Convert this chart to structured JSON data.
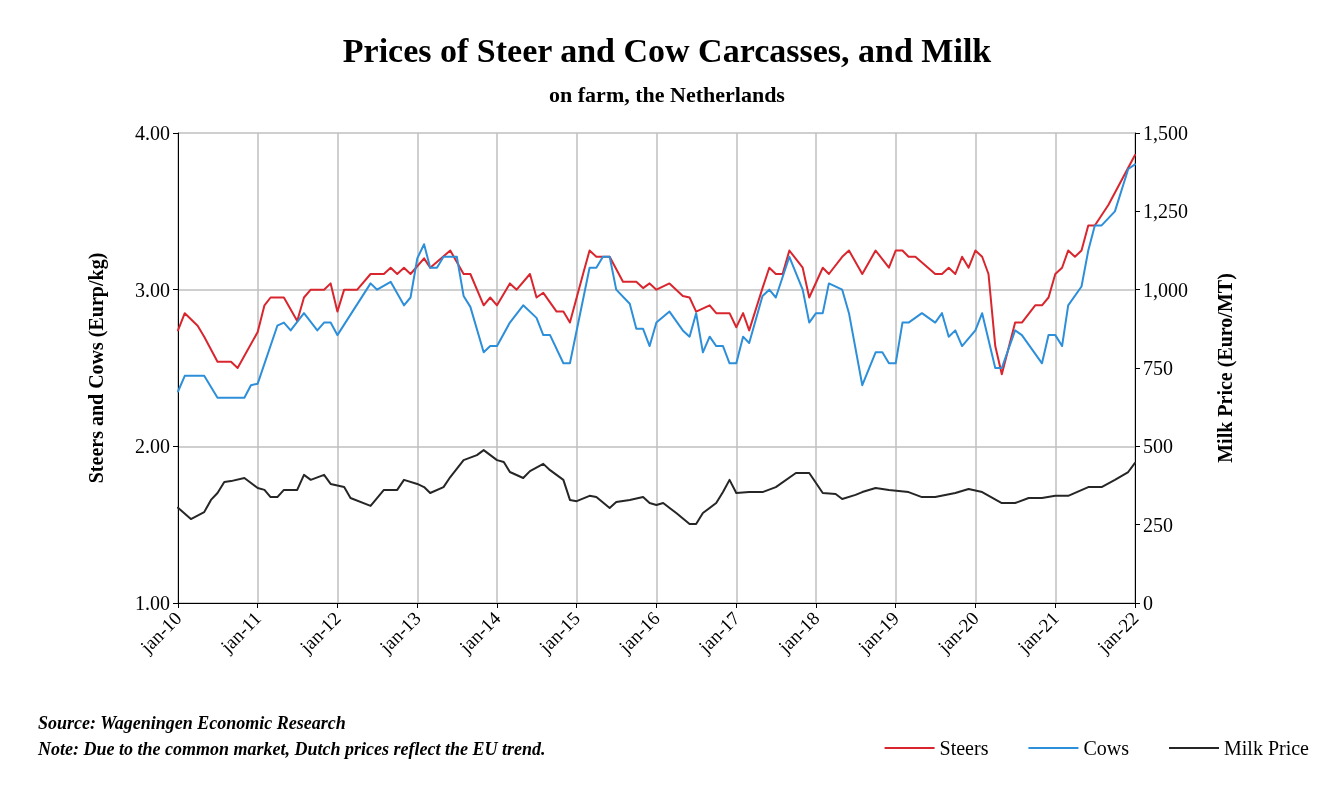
{
  "chart_data": {
    "type": "line",
    "title": "Prices of Steer and Cow Carcasses, and Milk",
    "subtitle": "on farm, the Netherlands",
    "ylabel": "Steers and Cows (Eurp/kg)",
    "y2label": "Milk Price (Euro/MT)",
    "annotations": [
      "Source: Wageningen Economic Research",
      "Note: Due to the common market, Dutch prices reflect the EU trend."
    ],
    "xlim": [
      "2010-01",
      "2022-01"
    ],
    "xticks": [
      {
        "value": "2010-01",
        "label": "jan-10"
      },
      {
        "value": "2011-01",
        "label": "jan-11"
      },
      {
        "value": "2012-01",
        "label": "jan-12"
      },
      {
        "value": "2013-01",
        "label": "jan-13"
      },
      {
        "value": "2014-01",
        "label": "jan-14"
      },
      {
        "value": "2015-01",
        "label": "jan-15"
      },
      {
        "value": "2016-01",
        "label": "jan-16"
      },
      {
        "value": "2017-01",
        "label": "jan-17"
      },
      {
        "value": "2018-01",
        "label": "jan-18"
      },
      {
        "value": "2019-01",
        "label": "jan-19"
      },
      {
        "value": "2020-01",
        "label": "jan-20"
      },
      {
        "value": "2021-01",
        "label": "jan-21"
      },
      {
        "value": "2022-01",
        "label": "jan-22"
      }
    ],
    "ylim": [
      1,
      4
    ],
    "yticks": [
      {
        "value": 1,
        "label": "1.00"
      },
      {
        "value": 2,
        "label": "2.00"
      },
      {
        "value": 3,
        "label": "3.00"
      },
      {
        "value": 4,
        "label": "4.00"
      }
    ],
    "y2lim": [
      0,
      1500
    ],
    "y2ticks": [
      0,
      250,
      500,
      750,
      {
        "value": 1000,
        "label": "1,000"
      },
      {
        "value": 1250,
        "label": "1,250"
      },
      {
        "value": 1500,
        "label": "1,500"
      }
    ],
    "grid": true,
    "legend": "bottom right",
    "marker": "none",
    "line_style": "solid",
    "series": [
      {
        "name": "Steers",
        "color": "#d9262e",
        "x": [
          "2010-01",
          "2010-02",
          "2010-04",
          "2010-05",
          "2010-07",
          "2010-09",
          "2010-10",
          "2011-01",
          "2011-02",
          "2011-03",
          "2011-05",
          "2011-07",
          "2011-08",
          "2011-09",
          "2011-11",
          "2011-12",
          "2012-01",
          "2012-02",
          "2012-04",
          "2012-06",
          "2012-08",
          "2012-09",
          "2012-10",
          "2012-11",
          "2012-12",
          "2013-02",
          "2013-03",
          "2013-06",
          "2013-08",
          "2013-09",
          "2013-11",
          "2013-12",
          "2014-01",
          "2014-03",
          "2014-04",
          "2014-06",
          "2014-07",
          "2014-08",
          "2014-10",
          "2014-11",
          "2014-12",
          "2015-02",
          "2015-03",
          "2015-04",
          "2015-06",
          "2015-08",
          "2015-10",
          "2015-11",
          "2015-12",
          "2016-01",
          "2016-03",
          "2016-05",
          "2016-06",
          "2016-07",
          "2016-09",
          "2016-10",
          "2016-12",
          "2017-01",
          "2017-02",
          "2017-03",
          "2017-05",
          "2017-06",
          "2017-07",
          "2017-08",
          "2017-09",
          "2017-11",
          "2017-12",
          "2018-02",
          "2018-03",
          "2018-05",
          "2018-06",
          "2018-08",
          "2018-10",
          "2018-12",
          "2019-01",
          "2019-02",
          "2019-03",
          "2019-04",
          "2019-07",
          "2019-08",
          "2019-09",
          "2019-10",
          "2019-11",
          "2019-12",
          "2020-01",
          "2020-02",
          "2020-03",
          "2020-04",
          "2020-05",
          "2020-07",
          "2020-08",
          "2020-10",
          "2020-11",
          "2020-12",
          "2021-01",
          "2021-02",
          "2021-03",
          "2021-04",
          "2021-05",
          "2021-06",
          "2021-07",
          "2021-09",
          "2021-11",
          "2022-01"
        ],
        "values": [
          2.74,
          2.85,
          2.77,
          2.7,
          2.54,
          2.54,
          2.5,
          2.73,
          2.9,
          2.95,
          2.95,
          2.8,
          2.95,
          3.0,
          3.0,
          3.04,
          2.86,
          3.0,
          3.0,
          3.1,
          3.1,
          3.14,
          3.1,
          3.14,
          3.1,
          3.2,
          3.14,
          3.25,
          3.1,
          3.1,
          2.9,
          2.95,
          2.9,
          3.04,
          3.0,
          3.1,
          2.95,
          2.98,
          2.86,
          2.86,
          2.79,
          3.11,
          3.25,
          3.21,
          3.21,
          3.05,
          3.05,
          3.01,
          3.04,
          3.0,
          3.04,
          2.96,
          2.95,
          2.86,
          2.9,
          2.85,
          2.85,
          2.76,
          2.85,
          2.74,
          3.01,
          3.14,
          3.1,
          3.1,
          3.25,
          3.14,
          2.95,
          3.14,
          3.1,
          3.21,
          3.25,
          3.1,
          3.25,
          3.14,
          3.25,
          3.25,
          3.21,
          3.21,
          3.1,
          3.1,
          3.14,
          3.1,
          3.21,
          3.14,
          3.25,
          3.21,
          3.1,
          2.64,
          2.46,
          2.79,
          2.79,
          2.9,
          2.9,
          2.95,
          3.1,
          3.14,
          3.25,
          3.21,
          3.25,
          3.41,
          3.41,
          3.54,
          3.7,
          3.86
        ]
      },
      {
        "name": "Cows",
        "color": "#2d8fd9",
        "x": [
          "2010-01",
          "2010-02",
          "2010-05",
          "2010-07",
          "2010-11",
          "2010-12",
          "2011-01",
          "2011-04",
          "2011-05",
          "2011-06",
          "2011-08",
          "2011-10",
          "2011-11",
          "2011-12",
          "2012-01",
          "2012-06",
          "2012-07",
          "2012-09",
          "2012-11",
          "2012-12",
          "2013-01",
          "2013-02",
          "2013-03",
          "2013-04",
          "2013-05",
          "2013-07",
          "2013-08",
          "2013-09",
          "2013-11",
          "2013-12",
          "2014-01",
          "2014-03",
          "2014-05",
          "2014-07",
          "2014-08",
          "2014-09",
          "2014-11",
          "2014-12",
          "2015-03",
          "2015-04",
          "2015-05",
          "2015-06",
          "2015-07",
          "2015-09",
          "2015-10",
          "2015-11",
          "2015-12",
          "2016-01",
          "2016-03",
          "2016-05",
          "2016-06",
          "2016-07",
          "2016-08",
          "2016-09",
          "2016-10",
          "2016-11",
          "2016-12",
          "2017-01",
          "2017-02",
          "2017-03",
          "2017-05",
          "2017-06",
          "2017-07",
          "2017-09",
          "2017-11",
          "2017-12",
          "2018-01",
          "2018-02",
          "2018-03",
          "2018-05",
          "2018-06",
          "2018-08",
          "2018-10",
          "2018-11",
          "2018-12",
          "2019-01",
          "2019-02",
          "2019-03",
          "2019-05",
          "2019-07",
          "2019-08",
          "2019-09",
          "2019-10",
          "2019-11",
          "2020-01",
          "2020-02",
          "2020-04",
          "2020-05",
          "2020-07",
          "2020-08",
          "2020-11",
          "2020-12",
          "2021-01",
          "2021-02",
          "2021-03",
          "2021-05",
          "2021-06",
          "2021-07",
          "2021-08",
          "2021-10",
          "2021-12",
          "2022-01"
        ],
        "values": [
          2.35,
          2.45,
          2.45,
          2.31,
          2.31,
          2.39,
          2.4,
          2.77,
          2.79,
          2.74,
          2.85,
          2.74,
          2.79,
          2.79,
          2.71,
          3.04,
          3.0,
          3.05,
          2.9,
          2.95,
          3.2,
          3.29,
          3.14,
          3.14,
          3.21,
          3.21,
          2.96,
          2.89,
          2.6,
          2.64,
          2.64,
          2.79,
          2.9,
          2.82,
          2.71,
          2.71,
          2.53,
          2.53,
          3.14,
          3.14,
          3.21,
          3.21,
          3.0,
          2.91,
          2.75,
          2.75,
          2.64,
          2.79,
          2.86,
          2.74,
          2.7,
          2.85,
          2.6,
          2.7,
          2.64,
          2.64,
          2.53,
          2.53,
          2.7,
          2.66,
          2.96,
          3.0,
          2.95,
          3.21,
          3.0,
          2.79,
          2.85,
          2.85,
          3.04,
          3.0,
          2.85,
          2.39,
          2.6,
          2.6,
          2.53,
          2.53,
          2.79,
          2.79,
          2.85,
          2.79,
          2.85,
          2.7,
          2.74,
          2.64,
          2.74,
          2.85,
          2.5,
          2.5,
          2.74,
          2.71,
          2.53,
          2.71,
          2.71,
          2.64,
          2.9,
          3.02,
          3.25,
          3.41,
          3.41,
          3.5,
          3.77,
          3.8
        ]
      },
      {
        "name": "Milk Price",
        "color": "#262626",
        "axis": "y2",
        "x": [
          "2010-01",
          "2010-03",
          "2010-05",
          "2010-06",
          "2010-07",
          "2010-08",
          "2010-09",
          "2010-11",
          "2011-01",
          "2011-02",
          "2011-03",
          "2011-04",
          "2011-05",
          "2011-07",
          "2011-08",
          "2011-09",
          "2011-11",
          "2011-12",
          "2012-02",
          "2012-03",
          "2012-06",
          "2012-08",
          "2012-10",
          "2012-11",
          "2013-01",
          "2013-02",
          "2013-03",
          "2013-05",
          "2013-06",
          "2013-08",
          "2013-10",
          "2013-11",
          "2014-01",
          "2014-02",
          "2014-03",
          "2014-05",
          "2014-06",
          "2014-08",
          "2014-09",
          "2014-11",
          "2014-12",
          "2015-01",
          "2015-03",
          "2015-04",
          "2015-06",
          "2015-07",
          "2015-09",
          "2015-11",
          "2015-12",
          "2016-01",
          "2016-02",
          "2016-04",
          "2016-06",
          "2016-07",
          "2016-08",
          "2016-10",
          "2016-11",
          "2016-12",
          "2017-01",
          "2017-03",
          "2017-05",
          "2017-07",
          "2017-10",
          "2017-12",
          "2018-01",
          "2018-02",
          "2018-04",
          "2018-05",
          "2018-07",
          "2018-08",
          "2018-10",
          "2018-12",
          "2019-03",
          "2019-05",
          "2019-07",
          "2019-10",
          "2019-12",
          "2020-02",
          "2020-05",
          "2020-07",
          "2020-09",
          "2020-11",
          "2021-01",
          "2021-03",
          "2021-06",
          "2021-08",
          "2021-10",
          "2021-12",
          "2022-01"
        ],
        "values": [
          304,
          268,
          290,
          329,
          351,
          386,
          389,
          399,
          367,
          361,
          338,
          338,
          361,
          361,
          409,
          393,
          409,
          380,
          370,
          335,
          310,
          361,
          361,
          393,
          380,
          370,
          351,
          370,
          402,
          456,
          472,
          488,
          456,
          450,
          418,
          399,
          421,
          444,
          424,
          393,
          329,
          325,
          342,
          338,
          303,
          322,
          329,
          338,
          319,
          313,
          319,
          287,
          252,
          252,
          287,
          319,
          354,
          393,
          351,
          354,
          354,
          370,
          415,
          415,
          383,
          351,
          348,
          332,
          345,
          354,
          367,
          361,
          354,
          338,
          338,
          351,
          364,
          354,
          319,
          319,
          335,
          335,
          342,
          342,
          370,
          370,
          393,
          418,
          447
        ]
      }
    ]
  }
}
